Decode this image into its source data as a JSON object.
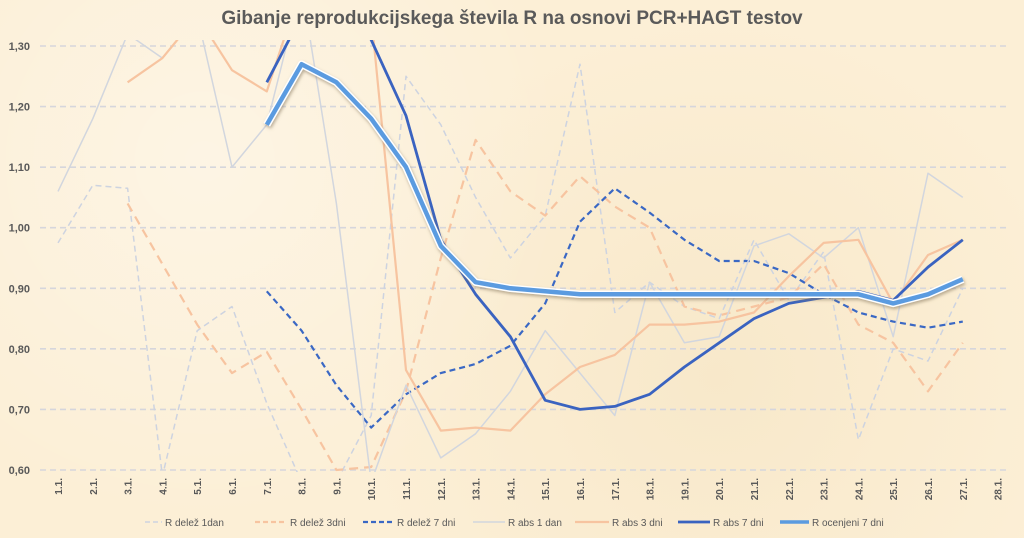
{
  "chart_data": {
    "type": "line",
    "title": "Gibanje reprodukcijskega števila R na osnovi PCR+HAGT testov",
    "xlabel": "",
    "ylabel": "",
    "ylim": [
      0.6,
      1.3
    ],
    "yticks": [
      "0,60",
      "0,70",
      "0,80",
      "0,90",
      "1,00",
      "1,10",
      "1,20",
      "1,30"
    ],
    "grid": true,
    "legend_position": "bottom",
    "categories": [
      "1.1.",
      "2.1.",
      "3.1.",
      "4.1.",
      "5.1.",
      "6.1.",
      "7.1.",
      "8.1.",
      "9.1.",
      "10.1.",
      "11.1.",
      "12.1.",
      "13.1.",
      "14.1.",
      "15.1.",
      "16.1.",
      "17.1.",
      "18.1.",
      "19.1.",
      "20.1.",
      "21.1.",
      "22.1.",
      "23.1.",
      "24.1.",
      "25.1.",
      "26.1.",
      "27.1.",
      "28.1."
    ],
    "series": [
      {
        "name": "R delež 1dan",
        "color": "#cdd3e0",
        "dash": "6,4",
        "width": 1.5,
        "values": [
          0.975,
          1.07,
          1.065,
          0.59,
          0.83,
          0.87,
          0.71,
          0.58,
          0.58,
          0.69,
          1.25,
          1.17,
          1.05,
          0.95,
          1.02,
          1.27,
          0.86,
          0.91,
          0.87,
          0.85,
          0.98,
          0.88,
          0.96,
          0.65,
          0.8,
          0.78,
          0.9,
          null
        ]
      },
      {
        "name": "R delež 3dni",
        "color": "#f7c4a0",
        "dash": "9,6",
        "width": 2.2,
        "values": [
          null,
          null,
          1.04,
          0.94,
          0.84,
          0.76,
          0.795,
          0.7,
          0.6,
          0.605,
          0.73,
          0.95,
          1.145,
          1.06,
          1.02,
          1.085,
          1.035,
          1.0,
          0.87,
          0.855,
          0.87,
          0.885,
          0.94,
          0.84,
          0.81,
          0.73,
          0.81,
          null
        ]
      },
      {
        "name": "R delež 7 dni",
        "color": "#3a68c4",
        "dash": "6,4",
        "width": 2.2,
        "values": [
          null,
          null,
          null,
          null,
          null,
          null,
          0.895,
          0.83,
          0.74,
          0.67,
          0.725,
          0.76,
          0.775,
          0.805,
          0.875,
          1.01,
          1.065,
          1.025,
          0.98,
          0.945,
          0.945,
          0.925,
          0.89,
          0.86,
          0.845,
          0.835,
          0.845,
          null
        ]
      },
      {
        "name": "R abs 1 dan",
        "color": "#d2d6de",
        "dash": "",
        "width": 1.5,
        "values": [
          1.06,
          1.18,
          1.32,
          1.28,
          1.35,
          1.1,
          1.17,
          1.4,
          1.04,
          0.58,
          0.74,
          0.62,
          0.66,
          0.73,
          0.83,
          0.76,
          0.69,
          0.91,
          0.81,
          0.82,
          0.97,
          0.99,
          0.95,
          1.0,
          0.82,
          1.09,
          1.05,
          null
        ]
      },
      {
        "name": "R abs 3 dni",
        "color": "#f7c4a0",
        "dash": "",
        "width": 2.2,
        "values": [
          null,
          null,
          1.24,
          1.28,
          1.35,
          1.26,
          1.225,
          1.4,
          1.45,
          1.35,
          0.765,
          0.665,
          0.67,
          0.665,
          0.725,
          0.77,
          0.79,
          0.84,
          0.84,
          0.845,
          0.86,
          0.92,
          0.975,
          0.98,
          0.875,
          0.955,
          0.98,
          null
        ]
      },
      {
        "name": "R abs 7 dni",
        "color": "#3a63c0",
        "dash": "",
        "width": 2.8,
        "values": [
          null,
          null,
          null,
          null,
          null,
          null,
          1.24,
          1.35,
          1.4,
          1.31,
          1.185,
          0.98,
          0.89,
          0.82,
          0.715,
          0.7,
          0.705,
          0.725,
          0.77,
          0.81,
          0.85,
          0.875,
          0.885,
          0.895,
          0.88,
          0.935,
          0.98,
          null
        ]
      },
      {
        "name": "R ocenjeni 7 dni",
        "color": "#5b9be0",
        "dash": "",
        "width": 4.5,
        "shadow": true,
        "values": [
          null,
          null,
          null,
          null,
          null,
          null,
          1.17,
          1.27,
          1.24,
          1.18,
          1.1,
          0.97,
          0.91,
          0.9,
          0.895,
          0.89,
          0.89,
          0.89,
          0.89,
          0.89,
          0.89,
          0.89,
          0.89,
          0.89,
          0.875,
          0.89,
          0.915,
          null
        ]
      }
    ]
  }
}
